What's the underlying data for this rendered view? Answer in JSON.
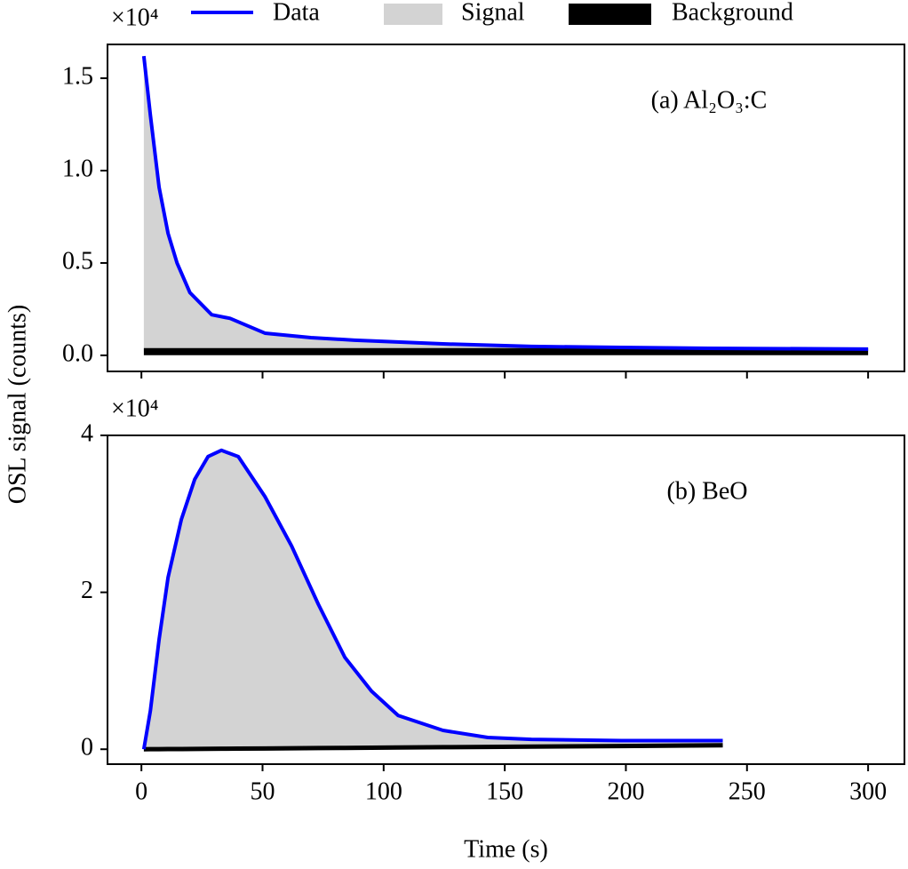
{
  "chart_data": [
    {
      "type": "line",
      "ylabel": "OSL signal (counts)",
      "offset_text": "×10⁴",
      "annotation": "(a) Al₂O₃:C",
      "x": [
        1,
        3.7,
        7.3,
        11,
        14.7,
        20,
        29,
        36.6,
        51,
        70,
        88,
        124.5,
        161,
        198,
        234,
        300
      ],
      "series": [
        {
          "name": "Data",
          "color": "#0000ff",
          "values": [
            1.62,
            1.3,
            0.91,
            0.66,
            0.5,
            0.34,
            0.22,
            0.2,
            0.12,
            0.096,
            0.082,
            0.062,
            0.048,
            0.043,
            0.038,
            0.034
          ]
        },
        {
          "name": "Background",
          "color": "#000000",
          "values": [
            0.02,
            0.02,
            0.02,
            0.02,
            0.02,
            0.02,
            0.02,
            0.02,
            0.02,
            0.02,
            0.02,
            0.02,
            0.02,
            0.02,
            0.02,
            0.02
          ]
        }
      ],
      "fill": {
        "name": "Signal",
        "color": "#d3d3d3"
      },
      "xlim": [
        -14,
        315
      ],
      "xticks": [
        0,
        50,
        100,
        150,
        200,
        250,
        300
      ],
      "ylim": [
        -0.087,
        1.683
      ],
      "yticks": [
        {
          "value": 0,
          "label": "0.0"
        },
        0.5,
        {
          "value": 1,
          "label": "1.0"
        },
        1.5
      ]
    },
    {
      "type": "line",
      "xlabel": "Time (s)",
      "offset_text": "×10⁴",
      "annotation": "(b) BeO",
      "x": [
        1,
        3.7,
        7.3,
        11,
        16.5,
        22,
        27.5,
        33,
        40,
        51,
        62,
        73,
        84,
        95,
        106,
        124.5,
        143,
        161,
        198,
        240
      ],
      "series": [
        {
          "name": "Data",
          "color": "#0000ff",
          "values": [
            0,
            0.49,
            1.4,
            2.19,
            2.93,
            3.44,
            3.73,
            3.81,
            3.73,
            3.22,
            2.59,
            1.85,
            1.17,
            0.74,
            0.43,
            0.24,
            0.15,
            0.125,
            0.11,
            0.11
          ]
        },
        {
          "name": "Background",
          "color": "#000000",
          "values": [
            0,
            0.001,
            0.001,
            0.002,
            0.003,
            0.004,
            0.006,
            0.007,
            0.008,
            0.01,
            0.013,
            0.015,
            0.017,
            0.02,
            0.022,
            0.026,
            0.03,
            0.033,
            0.041,
            0.05
          ]
        }
      ],
      "fill": {
        "name": "Signal",
        "color": "#d3d3d3"
      },
      "xlim": [
        -14,
        315
      ],
      "xticks": [
        0,
        50,
        100,
        150,
        200,
        250,
        300
      ],
      "ylim": [
        -0.19,
        4.0
      ],
      "yticks": [
        0,
        2,
        4
      ]
    }
  ]
}
